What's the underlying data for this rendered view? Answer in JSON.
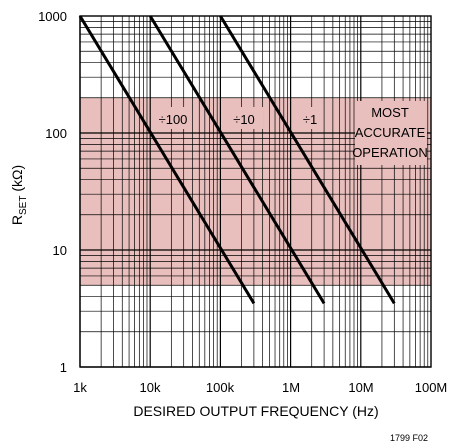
{
  "chart_data": {
    "type": "line",
    "xscale": "log",
    "yscale": "log",
    "xlim": [
      1000,
      100000000
    ],
    "ylim": [
      1,
      1000
    ],
    "x_ticks": [
      "1k",
      "10k",
      "100k",
      "1M",
      "10M",
      "100M"
    ],
    "y_ticks": [
      "1000",
      "100",
      "10",
      "1"
    ],
    "xlabel": "DESIRED OUTPUT FREQUENCY (Hz)",
    "ylabel": {
      "main": "R",
      "sub": "SET",
      "unit": " (kΩ)"
    },
    "grid": true,
    "series": [
      {
        "name": "÷100",
        "points": [
          [
            1000,
            1000
          ],
          [
            300000,
            3.5
          ]
        ]
      },
      {
        "name": "÷10",
        "points": [
          [
            10000,
            1000
          ],
          [
            3000000,
            3.5
          ]
        ]
      },
      {
        "name": "÷1",
        "points": [
          [
            100000,
            1000
          ],
          [
            30000000,
            3.5
          ]
        ]
      }
    ],
    "band": {
      "ymin": 5,
      "ymax": 200,
      "color": "#e8bfbd"
    },
    "band_label": [
      "MOST",
      "ACCURATE",
      "OPERATION"
    ],
    "figure_id": "1799 F02"
  }
}
